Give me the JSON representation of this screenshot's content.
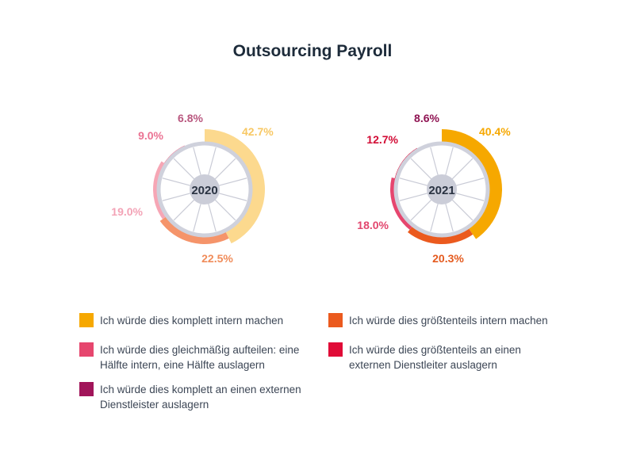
{
  "chart_data": {
    "type": "pie",
    "title": "Outsourcing Payroll",
    "categories": [
      "Ich würde dies komplett intern machen",
      "Ich würde dies größtenteils intern machen",
      "Ich würde dies gleichmäßig aufteilen: eine Hälfte intern, eine Hälfte auslagern",
      "Ich würde dies größtenteils an einen externen Dienstleiter auslagern",
      "Ich würde dies komplett an einen externen Dienstleister auslagern"
    ],
    "charts": [
      {
        "year": "2020",
        "values": [
          42.7,
          22.5,
          19.0,
          9.0,
          6.8
        ],
        "labels": [
          "42.7%",
          "22.5%",
          "19.0%",
          "9.0%",
          "6.8%"
        ],
        "colors": [
          "#fcd98e",
          "#f5946a",
          "#f6a6b5",
          "#ef88a2",
          "#c86a93"
        ]
      },
      {
        "year": "2021",
        "values": [
          40.4,
          20.3,
          18.0,
          12.7,
          8.6
        ],
        "labels": [
          "40.4%",
          "20.3%",
          "18.0%",
          "12.7%",
          "8.6%"
        ],
        "colors": [
          "#f6a800",
          "#eb5a1e",
          "#e6466e",
          "#e00b37",
          "#a1155a"
        ]
      }
    ],
    "legend": [
      {
        "text": "Ich würde dies komplett intern machen",
        "color": "#f6a800"
      },
      {
        "text": "Ich würde dies größtenteils intern machen",
        "color": "#eb5a1e"
      },
      {
        "text": "Ich würde dies gleichmäßig aufteilen: eine Hälfte intern, eine Hälfte auslagern",
        "color": "#e6466e"
      },
      {
        "text": "Ich würde dies größtenteils an einen externen Dienstleiter auslagern",
        "color": "#e00b37"
      },
      {
        "text": "Ich würde dies komplett an einen externen Dienstleister auslagern",
        "color": "#a1155a"
      }
    ],
    "label_colors_2020": [
      "#f8c864",
      "#f08c5a",
      "#f3a3b6",
      "#eb7393",
      "#b9577f"
    ],
    "label_colors_2021": [
      "#f6a800",
      "#e45a1e",
      "#e2466e",
      "#d20a34",
      "#8f1352"
    ]
  }
}
